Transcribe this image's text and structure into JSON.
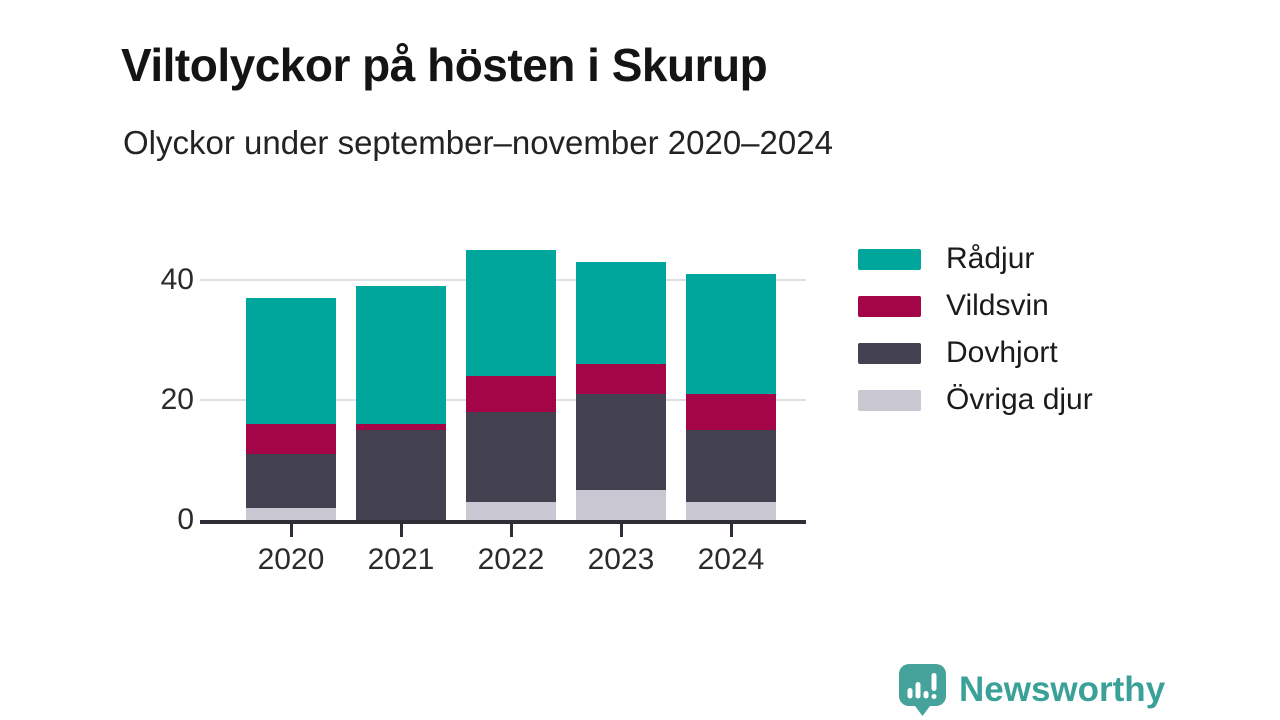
{
  "header": {
    "title": "Viltolyckor på hösten i Skurup",
    "subtitle": "Olyckor under september–november 2020–2024"
  },
  "chart_data": {
    "type": "bar",
    "stacked": true,
    "title": "Viltolyckor på hösten i Skurup",
    "subtitle": "Olyckor under september–november 2020–2024",
    "categories": [
      "2020",
      "2021",
      "2022",
      "2023",
      "2024"
    ],
    "series": [
      {
        "name": "Övriga djur",
        "color": "#c9c7d1",
        "values": [
          2,
          0,
          3,
          5,
          3
        ]
      },
      {
        "name": "Dovhjort",
        "color": "#444150",
        "values": [
          9,
          15,
          15,
          16,
          12
        ]
      },
      {
        "name": "Vildsvin",
        "color": "#a30546",
        "values": [
          5,
          1,
          6,
          5,
          6
        ]
      },
      {
        "name": "Rådjur",
        "color": "#00a69c",
        "values": [
          21,
          23,
          21,
          17,
          20
        ]
      }
    ],
    "totals": [
      37,
      39,
      45,
      43,
      41
    ],
    "xlabel": "",
    "ylabel": "",
    "yticks": [
      0,
      20,
      40
    ],
    "ylim": [
      0,
      46.7
    ],
    "grid": true,
    "legend_position": "right",
    "legend_order": [
      "Rådjur",
      "Vildsvin",
      "Dovhjort",
      "Övriga djur"
    ]
  },
  "branding": {
    "name": "Newsworthy",
    "text_color": "#3aa198",
    "icon_color": "#45a39b",
    "icon": "newsworthy-logo-icon"
  },
  "style_colors": {
    "axis": "#2e2e36",
    "gridline": "#e0e0e4",
    "tick_text": "#2b2b2b"
  }
}
